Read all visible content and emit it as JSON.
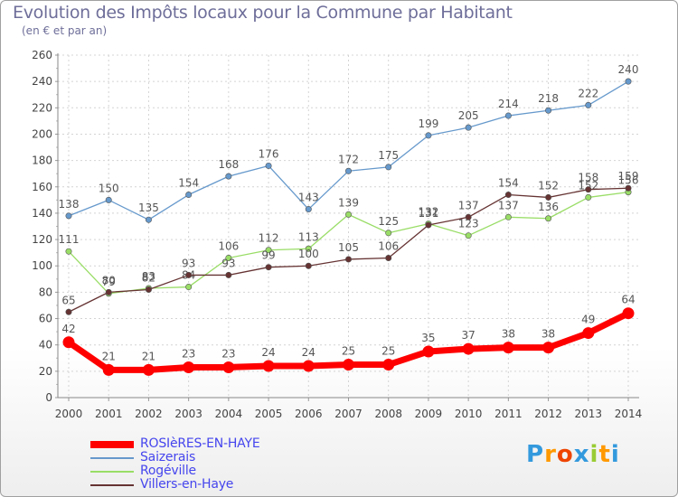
{
  "chart_data": {
    "type": "line",
    "title": "Evolution des Impôts locaux pour la Commune par Habitant",
    "subtitle": "(en € et par an)",
    "categories": [
      "2000",
      "2001",
      "2002",
      "2003",
      "2004",
      "2005",
      "2006",
      "2007",
      "2008",
      "2009",
      "2010",
      "2011",
      "2012",
      "2013",
      "2014"
    ],
    "ylim": [
      0,
      260
    ],
    "yticks": [
      0,
      20,
      40,
      60,
      80,
      100,
      120,
      140,
      160,
      180,
      200,
      220,
      240,
      260
    ],
    "grid": true,
    "xlabel": "",
    "ylabel": "",
    "series": [
      {
        "name": "ROSIèRES-EN-HAYE",
        "color": "#ff0000",
        "values": [
          42,
          21,
          21,
          23,
          23,
          24,
          24,
          25,
          25,
          35,
          37,
          38,
          38,
          49,
          64
        ]
      },
      {
        "name": "Saizerais",
        "color": "#6699cc",
        "values": [
          138,
          150,
          135,
          154,
          168,
          176,
          143,
          172,
          175,
          199,
          205,
          214,
          218,
          222,
          240
        ]
      },
      {
        "name": "Rogéville",
        "color": "#99dd66",
        "values": [
          111,
          79,
          83,
          84,
          106,
          112,
          113,
          139,
          125,
          132,
          123,
          137,
          136,
          152,
          156
        ]
      },
      {
        "name": "Villers-en-Haye",
        "color": "#663333",
        "values": [
          65,
          80,
          82,
          93,
          93,
          99,
          100,
          105,
          106,
          131,
          137,
          154,
          152,
          158,
          159
        ]
      }
    ]
  },
  "logo": {
    "letters": [
      "P",
      "r",
      "o",
      "x",
      "i",
      "t",
      "i"
    ],
    "colors": [
      "#3399dd",
      "#ff9900",
      "#ee4400",
      "#3399dd",
      "#99cc33",
      "#ff9900",
      "#3399dd"
    ]
  }
}
